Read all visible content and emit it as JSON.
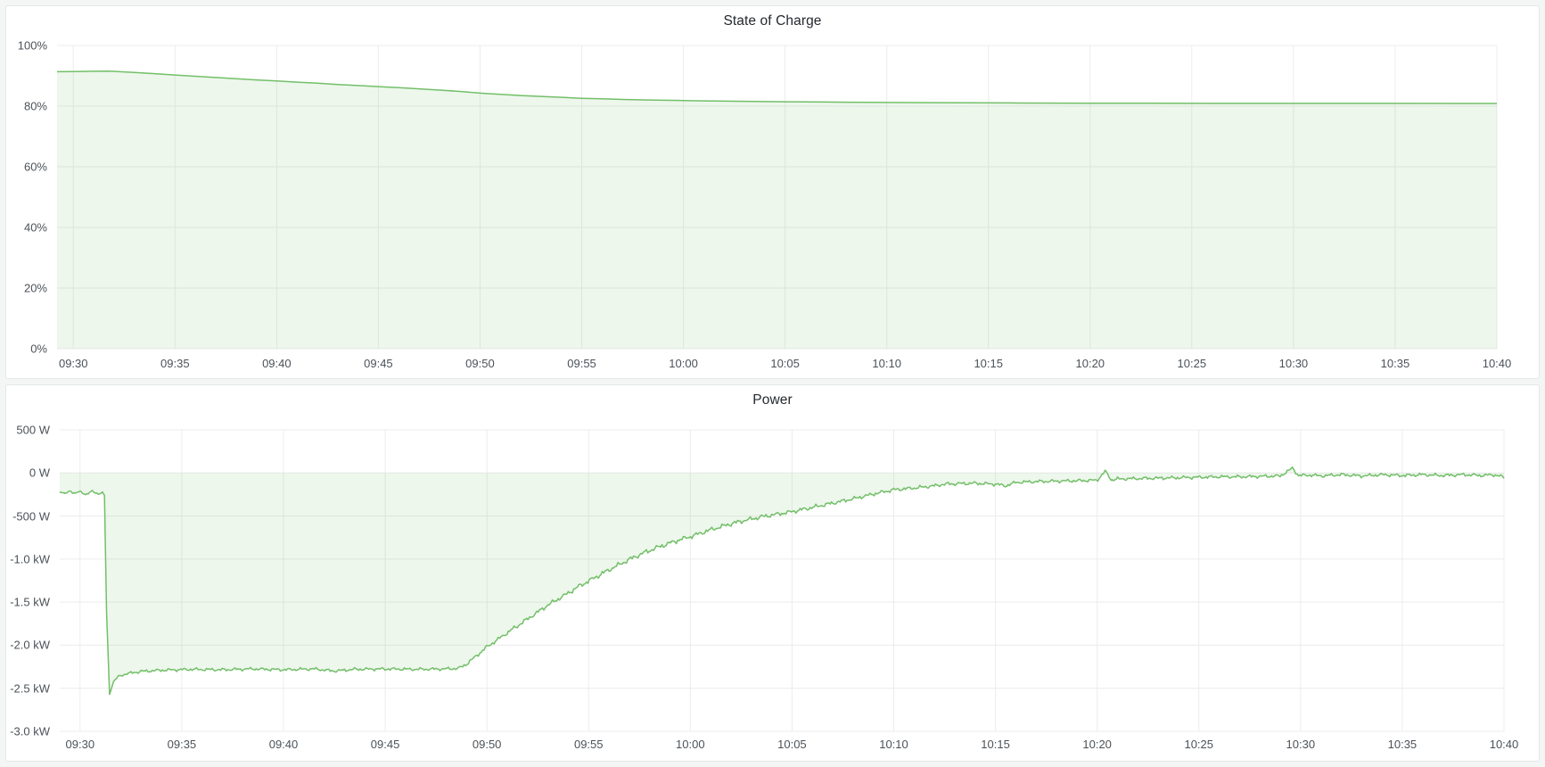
{
  "page": {
    "background_color": "#f4f5f5",
    "panel_background": "#ffffff",
    "panel_border_color": "#e4e7e8",
    "grid_color": "#ececec",
    "axis_text_color": "#4c5258",
    "title_text_color": "#24292e",
    "accent_green": "#73bf69"
  },
  "charts": [
    {
      "title": "State of Charge",
      "chart_data": {
        "type": "area",
        "line_color": "#73bf69",
        "fill_color": "rgba(115,191,105,0.13)",
        "fill_to_value": 0,
        "grid": true,
        "x_domain_minutes": [
          29.2,
          100
        ],
        "ylim": [
          0,
          100
        ],
        "y_ticks": [
          {
            "value": 100,
            "label": "100%"
          },
          {
            "value": 80,
            "label": "80%"
          },
          {
            "value": 60,
            "label": "60%"
          },
          {
            "value": 40,
            "label": "40%"
          },
          {
            "value": 20,
            "label": "20%"
          },
          {
            "value": 0,
            "label": "0%"
          }
        ],
        "x_ticks": [
          {
            "minute": 30,
            "label": "09:30"
          },
          {
            "minute": 35,
            "label": "09:35"
          },
          {
            "minute": 40,
            "label": "09:40"
          },
          {
            "minute": 45,
            "label": "09:45"
          },
          {
            "minute": 50,
            "label": "09:50"
          },
          {
            "minute": 55,
            "label": "09:55"
          },
          {
            "minute": 60,
            "label": "10:00"
          },
          {
            "minute": 65,
            "label": "10:05"
          },
          {
            "minute": 70,
            "label": "10:10"
          },
          {
            "minute": 75,
            "label": "10:15"
          },
          {
            "minute": 80,
            "label": "10:20"
          },
          {
            "minute": 85,
            "label": "10:25"
          },
          {
            "minute": 90,
            "label": "10:30"
          },
          {
            "minute": 95,
            "label": "10:35"
          },
          {
            "minute": 100,
            "label": "10:40"
          }
        ],
        "series": [
          {
            "name": "state_of_charge_percent",
            "points": [
              [
                29.2,
                91.35
              ],
              [
                30,
                91.4
              ],
              [
                31,
                91.5
              ],
              [
                31.7,
                91.55
              ],
              [
                32.5,
                91.3
              ],
              [
                33,
                91.1
              ],
              [
                34,
                90.7
              ],
              [
                35,
                90.25
              ],
              [
                36,
                89.85
              ],
              [
                37,
                89.45
              ],
              [
                38,
                89.05
              ],
              [
                39,
                88.65
              ],
              [
                40,
                88.3
              ],
              [
                41,
                87.9
              ],
              [
                42,
                87.55
              ],
              [
                43,
                87.15
              ],
              [
                44,
                86.8
              ],
              [
                45,
                86.45
              ],
              [
                46,
                86.1
              ],
              [
                47,
                85.7
              ],
              [
                48,
                85.3
              ],
              [
                49,
                84.85
              ],
              [
                50,
                84.3
              ],
              [
                50.5,
                84.1
              ],
              [
                51,
                83.9
              ],
              [
                52,
                83.5
              ],
              [
                53,
                83.2
              ],
              [
                54,
                82.9
              ],
              [
                55,
                82.6
              ],
              [
                56,
                82.4
              ],
              [
                57,
                82.2
              ],
              [
                58,
                82.05
              ],
              [
                59,
                81.95
              ],
              [
                60,
                81.85
              ],
              [
                61,
                81.75
              ],
              [
                62,
                81.65
              ],
              [
                63,
                81.6
              ],
              [
                64,
                81.5
              ],
              [
                65,
                81.45
              ],
              [
                66,
                81.4
              ],
              [
                67,
                81.35
              ],
              [
                68,
                81.3
              ],
              [
                69,
                81.25
              ],
              [
                70,
                81.2
              ],
              [
                72,
                81.15
              ],
              [
                74,
                81.1
              ],
              [
                76,
                81.05
              ],
              [
                78,
                81.0
              ],
              [
                80,
                80.98
              ],
              [
                83,
                80.95
              ],
              [
                86,
                80.92
              ],
              [
                90,
                80.9
              ],
              [
                95,
                80.9
              ],
              [
                100,
                80.88
              ]
            ],
            "noise_amp_points": [
              [
                29.2,
                0
              ],
              [
                100,
                0
              ]
            ],
            "noise_seed": 3,
            "sample_step_minutes": 0
          }
        ]
      }
    },
    {
      "title": "Power",
      "chart_data": {
        "type": "area",
        "line_color": "#73bf69",
        "fill_color": "rgba(115,191,105,0.13)",
        "fill_to_value": 0,
        "grid": true,
        "x_domain_minutes": [
          29,
          100
        ],
        "ylim": [
          -3000,
          500
        ],
        "y_ticks": [
          {
            "value": 500,
            "label": "500 W"
          },
          {
            "value": 0,
            "label": "0 W"
          },
          {
            "value": -500,
            "label": "-500 W"
          },
          {
            "value": -1000,
            "label": "-1.0 kW"
          },
          {
            "value": -1500,
            "label": "-1.5 kW"
          },
          {
            "value": -2000,
            "label": "-2.0 kW"
          },
          {
            "value": -2500,
            "label": "-2.5 kW"
          },
          {
            "value": -3000,
            "label": "-3.0 kW"
          }
        ],
        "x_ticks": [
          {
            "minute": 30,
            "label": "09:30"
          },
          {
            "minute": 35,
            "label": "09:35"
          },
          {
            "minute": 40,
            "label": "09:40"
          },
          {
            "minute": 45,
            "label": "09:45"
          },
          {
            "minute": 50,
            "label": "09:50"
          },
          {
            "minute": 55,
            "label": "09:55"
          },
          {
            "minute": 60,
            "label": "10:00"
          },
          {
            "minute": 65,
            "label": "10:05"
          },
          {
            "minute": 70,
            "label": "10:10"
          },
          {
            "minute": 75,
            "label": "10:15"
          },
          {
            "minute": 80,
            "label": "10:20"
          },
          {
            "minute": 85,
            "label": "10:25"
          },
          {
            "minute": 90,
            "label": "10:30"
          },
          {
            "minute": 95,
            "label": "10:35"
          },
          {
            "minute": 100,
            "label": "10:40"
          }
        ],
        "series": [
          {
            "name": "power_watts",
            "points": [
              [
                29.0,
                -215
              ],
              [
                29.25,
                -245
              ],
              [
                29.5,
                -205
              ],
              [
                29.75,
                -240
              ],
              [
                30.0,
                -215
              ],
              [
                30.3,
                -250
              ],
              [
                30.6,
                -215
              ],
              [
                30.9,
                -240
              ],
              [
                31.1,
                -230
              ],
              [
                31.2,
                -260
              ],
              [
                31.3,
                -1600
              ],
              [
                31.45,
                -2570
              ],
              [
                31.65,
                -2420
              ],
              [
                31.9,
                -2360
              ],
              [
                32.3,
                -2330
              ],
              [
                33.0,
                -2305
              ],
              [
                34.0,
                -2290
              ],
              [
                35.5,
                -2280
              ],
              [
                37.0,
                -2285
              ],
              [
                38.5,
                -2275
              ],
              [
                40.0,
                -2285
              ],
              [
                41.5,
                -2275
              ],
              [
                42.5,
                -2300
              ],
              [
                43.5,
                -2280
              ],
              [
                45.0,
                -2275
              ],
              [
                46.5,
                -2280
              ],
              [
                48.0,
                -2275
              ],
              [
                48.6,
                -2270
              ],
              [
                49.0,
                -2220
              ],
              [
                49.5,
                -2120
              ],
              [
                50.0,
                -2020
              ],
              [
                50.5,
                -1940
              ],
              [
                51.0,
                -1855
              ],
              [
                51.5,
                -1775
              ],
              [
                52.0,
                -1695
              ],
              [
                52.5,
                -1615
              ],
              [
                53.0,
                -1535
              ],
              [
                53.5,
                -1465
              ],
              [
                54.0,
                -1395
              ],
              [
                54.5,
                -1320
              ],
              [
                55.0,
                -1255
              ],
              [
                55.5,
                -1190
              ],
              [
                56.0,
                -1125
              ],
              [
                56.5,
                -1065
              ],
              [
                57.0,
                -1005
              ],
              [
                57.5,
                -950
              ],
              [
                58.0,
                -900
              ],
              [
                58.5,
                -855
              ],
              [
                59.0,
                -815
              ],
              [
                59.5,
                -775
              ],
              [
                60.0,
                -740
              ],
              [
                60.5,
                -700
              ],
              [
                61.0,
                -660
              ],
              [
                61.5,
                -625
              ],
              [
                62.0,
                -590
              ],
              [
                62.5,
                -560
              ],
              [
                63.0,
                -535
              ],
              [
                63.5,
                -510
              ],
              [
                64.0,
                -490
              ],
              [
                64.5,
                -470
              ],
              [
                65.0,
                -450
              ],
              [
                66.0,
                -400
              ],
              [
                67.0,
                -350
              ],
              [
                68.0,
                -300
              ],
              [
                69.0,
                -245
              ],
              [
                70.0,
                -195
              ],
              [
                71.0,
                -175
              ],
              [
                72.0,
                -150
              ],
              [
                72.5,
                -130
              ],
              [
                73.0,
                -125
              ],
              [
                74.0,
                -120
              ],
              [
                75.0,
                -130
              ],
              [
                75.5,
                -150
              ],
              [
                76.0,
                -110
              ],
              [
                77.0,
                -100
              ],
              [
                78.0,
                -95
              ],
              [
                79.0,
                -90
              ],
              [
                80.0,
                -85
              ],
              [
                80.4,
                20
              ],
              [
                80.7,
                -80
              ],
              [
                81.0,
                -70
              ],
              [
                82.0,
                -65
              ],
              [
                83.0,
                -60
              ],
              [
                84.0,
                -55
              ],
              [
                85.0,
                -50
              ],
              [
                86.0,
                -45
              ],
              [
                87.0,
                -45
              ],
              [
                88.0,
                -40
              ],
              [
                89.0,
                -35
              ],
              [
                89.6,
                55
              ],
              [
                89.9,
                -30
              ],
              [
                90.5,
                -25
              ],
              [
                91.0,
                -35
              ],
              [
                92.0,
                -20
              ],
              [
                93.0,
                -35
              ],
              [
                94.0,
                -20
              ],
              [
                95.0,
                -30
              ],
              [
                96.0,
                -20
              ],
              [
                97.0,
                -30
              ],
              [
                98.0,
                -20
              ],
              [
                99.0,
                -30
              ],
              [
                99.5,
                -20
              ],
              [
                100.0,
                -50
              ]
            ],
            "noise_amp_points": [
              [
                29,
                16
              ],
              [
                31.05,
                16
              ],
              [
                31.2,
                4
              ],
              [
                31.7,
                4
              ],
              [
                32,
                18
              ],
              [
                33,
                22
              ],
              [
                48.3,
                22
              ],
              [
                49,
                26
              ],
              [
                53,
                32
              ],
              [
                58,
                36
              ],
              [
                62,
                32
              ],
              [
                66,
                30
              ],
              [
                70,
                26
              ],
              [
                76,
                24
              ],
              [
                100,
                24
              ]
            ],
            "noise_seed": 7,
            "sample_step_minutes": 0.07
          }
        ]
      }
    }
  ]
}
